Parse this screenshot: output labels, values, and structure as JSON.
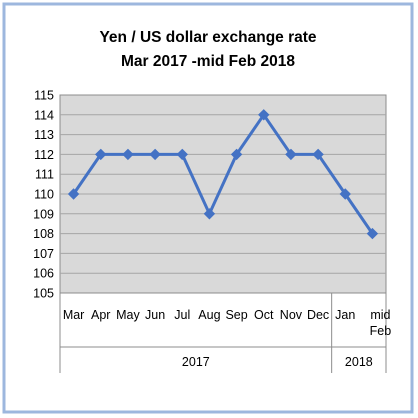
{
  "chart_data": {
    "type": "line",
    "title": "Yen / US dollar exchange rate",
    "subtitle": "Mar 2017 -mid Feb 2018",
    "categories": [
      "Mar",
      "Apr",
      "May",
      "Jun",
      "Jul",
      "Aug",
      "Sep",
      "Oct",
      "Nov",
      "Dec",
      "Jan",
      "mid Feb"
    ],
    "groups": [
      {
        "label": "2017",
        "start": 0,
        "end": 9
      },
      {
        "label": "2018",
        "start": 10,
        "end": 11
      }
    ],
    "series": [
      {
        "values": [
          110,
          112,
          112,
          112,
          112,
          109,
          112,
          114,
          112,
          112,
          110,
          108
        ]
      }
    ],
    "ylim": [
      105,
      115
    ],
    "yticks": [
      "105",
      "106",
      "107",
      "108",
      "109",
      "110",
      "111",
      "112",
      "113",
      "114",
      "115"
    ],
    "grid": true,
    "legend": "none",
    "colors": {
      "line": "#4472C4",
      "plot_background": "#D9D9D9",
      "chart_background": "#FFFFFF",
      "outer_border": "#9DB7DE",
      "title_text": "#000000",
      "axis_text": "#000000",
      "gridline": "#A6A6A6"
    }
  }
}
